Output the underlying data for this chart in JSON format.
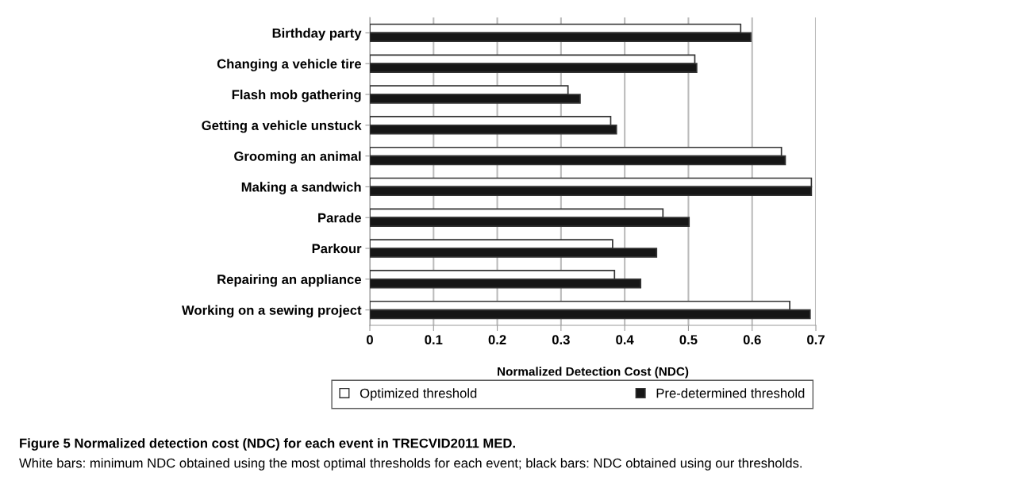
{
  "chart_data": {
    "type": "bar",
    "orientation": "horizontal",
    "title": "Figure 5 Normalized detection cost (NDC) for each event in TRECVID2011 MED.",
    "xlabel": "Normalized Detection Cost (NDC)",
    "annotations": [
      "White bars: minimum NDC obtained using the most optimal thresholds for each event; black bars: NDC obtained using our thresholds."
    ],
    "categories": [
      "Birthday party",
      "Changing a vehicle tire",
      "Flash mob gathering",
      "Getting a vehicle unstuck",
      "Grooming an animal",
      "Making a sandwich",
      "Parade",
      "Parkour",
      "Repairing an appliance",
      "Working on a sewing project"
    ],
    "series": [
      {
        "name": "Optimized threshold",
        "color": "#ffffff",
        "values": [
          0.582,
          0.51,
          0.311,
          0.378,
          0.646,
          0.693,
          0.46,
          0.381,
          0.384,
          0.659
        ]
      },
      {
        "name": "Pre-determined threshold",
        "color": "#161616",
        "values": [
          0.598,
          0.513,
          0.33,
          0.387,
          0.652,
          0.693,
          0.501,
          0.45,
          0.425,
          0.691
        ]
      }
    ],
    "xlim": [
      0,
      0.7
    ],
    "xticks": [
      0,
      0.1,
      0.2,
      0.3,
      0.4,
      0.5,
      0.6,
      0.7
    ],
    "grid": "x",
    "legend": "bottom"
  }
}
